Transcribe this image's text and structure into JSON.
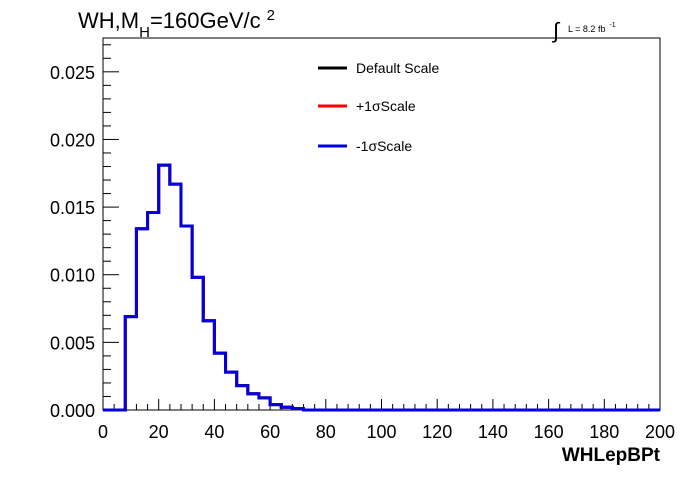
{
  "chart_data": {
    "type": "line",
    "title": "WH,M_H=160GeV/c^2",
    "title_parts": {
      "main": "WH,M",
      "sub": "H",
      "rest": "=160GeV/c",
      "sup": "2"
    },
    "lumi_label": {
      "integral": "∫",
      "text": "L = 8.2 fb",
      "sup": "-1"
    },
    "xlabel": "WHLepBPt",
    "ylabel": "",
    "xlim": [
      0,
      200
    ],
    "ylim": [
      0,
      0.0275
    ],
    "x_ticks": [
      0,
      20,
      40,
      60,
      80,
      100,
      120,
      140,
      160,
      180,
      200
    ],
    "x_tick_labels": [
      "0",
      "20",
      "40",
      "60",
      "80",
      "100",
      "120",
      "140",
      "160",
      "180",
      "200"
    ],
    "y_ticks": [
      0,
      0.005,
      0.01,
      0.015,
      0.02,
      0.025
    ],
    "y_tick_labels": [
      "0.000",
      "0.005",
      "0.010",
      "0.015",
      "0.020",
      "0.025"
    ],
    "bin_edges": [
      0,
      4,
      8,
      12,
      16,
      20,
      24,
      28,
      32,
      36,
      40,
      44,
      48,
      52,
      56,
      60,
      64,
      68,
      72,
      76,
      80,
      84,
      88,
      92,
      96,
      100,
      104,
      108,
      112,
      116,
      120,
      124,
      128,
      132,
      136,
      140,
      144,
      148,
      152,
      156,
      160,
      164,
      168,
      172,
      176,
      180,
      184,
      188,
      192,
      196,
      200
    ],
    "series": [
      {
        "name": "Default Scale",
        "color": "#000000",
        "values": [
          0,
          0,
          0.0069,
          0.0134,
          0.0146,
          0.0181,
          0.0167,
          0.0136,
          0.0098,
          0.0066,
          0.0042,
          0.0028,
          0.0018,
          0.0012,
          0.0009,
          0.0004,
          0.0002,
          0.0001,
          0,
          0,
          0,
          0,
          0,
          0,
          0,
          0,
          0,
          0,
          0,
          0,
          0,
          0,
          0,
          0,
          0,
          0,
          0,
          0,
          0,
          0,
          0,
          0,
          0,
          0,
          0,
          0,
          0,
          0,
          0,
          0
        ]
      },
      {
        "name": "+1σScale",
        "color": "#ff0000",
        "values": [
          0,
          0,
          0.0069,
          0.0134,
          0.0146,
          0.0181,
          0.0167,
          0.0136,
          0.0098,
          0.0066,
          0.0042,
          0.0028,
          0.0018,
          0.0012,
          0.0009,
          0.0004,
          0.0002,
          0.0001,
          0,
          0,
          0,
          0,
          0,
          0,
          0,
          0,
          0,
          0,
          0,
          0,
          0,
          0,
          0,
          0,
          0,
          0,
          0,
          0,
          0,
          0,
          0,
          0,
          0,
          0,
          0,
          0,
          0,
          0,
          0,
          0
        ]
      },
      {
        "name": "-1σScale",
        "color": "#0000e0",
        "values": [
          0,
          0,
          0.0069,
          0.0134,
          0.0146,
          0.0181,
          0.0167,
          0.0136,
          0.0098,
          0.0066,
          0.0042,
          0.0028,
          0.0018,
          0.0012,
          0.0009,
          0.0004,
          0.0002,
          0.0001,
          0,
          0,
          0,
          0,
          0,
          0,
          0,
          0,
          0,
          0,
          0,
          0,
          0,
          0,
          0,
          0,
          0,
          0,
          0,
          0,
          0,
          0,
          0,
          0,
          0,
          0,
          0,
          0,
          0,
          0,
          0,
          0
        ]
      }
    ],
    "legend_placement": "top-center",
    "grid": false
  }
}
